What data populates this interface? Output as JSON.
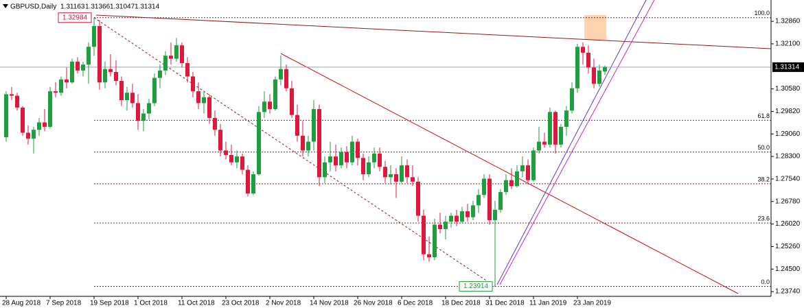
{
  "chart_data": {
    "type": "candlestick",
    "symbol": "GBPUSD,Daily",
    "categories": [
      "28 Aug 2018",
      null,
      null,
      null,
      null,
      null,
      null,
      null,
      "7 Sep 2018",
      null,
      null,
      null,
      null,
      null,
      null,
      null,
      "19 Sep 2018",
      null,
      null,
      null,
      null,
      null,
      null,
      null,
      "1 Oct 2018",
      null,
      null,
      null,
      null,
      null,
      null,
      null,
      "11 Oct 2018",
      null,
      null,
      null,
      null,
      null,
      null,
      null,
      "23 Oct 2018",
      null,
      null,
      null,
      null,
      null,
      null,
      null,
      "2 Nov 2018",
      null,
      null,
      null,
      null,
      null,
      null,
      null,
      "14 Nov 2018",
      null,
      null,
      null,
      null,
      null,
      null,
      null,
      "26 Nov 2018",
      null,
      null,
      null,
      null,
      null,
      null,
      null,
      "6 Dec 2018",
      null,
      null,
      null,
      null,
      null,
      null,
      null,
      "18 Dec 2018",
      null,
      null,
      null,
      null,
      null,
      null,
      null,
      "31 Dec 2018",
      null,
      null,
      null,
      null,
      null,
      null,
      null,
      "11 Jan 2019",
      null,
      null,
      null,
      null,
      null,
      null,
      null,
      "23 Jan 2019",
      null,
      null,
      null,
      null,
      null
    ],
    "open": [
      1.2895,
      1.304,
      1.3035,
      1.2995,
      1.291,
      1.289,
      1.292,
      1.2945,
      1.293,
      1.305,
      1.3045,
      1.309,
      1.308,
      1.315,
      1.312,
      1.314,
      1.32,
      1.327,
      1.308,
      1.3125,
      1.3115,
      1.3085,
      1.302,
      1.3045,
      1.301,
      1.295,
      1.2975,
      1.301,
      1.3095,
      1.312,
      1.317,
      1.316,
      1.3205,
      1.3145,
      1.31,
      1.305,
      1.301,
      1.303,
      1.296,
      1.292,
      1.285,
      1.2835,
      1.281,
      1.283,
      1.2785,
      1.2705,
      1.277,
      1.298,
      1.3015,
      1.299,
      1.309,
      1.3125,
      1.306,
      1.297,
      1.29,
      1.285,
      1.288,
      1.299,
      1.276,
      1.281,
      1.283,
      1.28,
      1.2845,
      1.281,
      1.288,
      1.2825,
      1.277,
      1.281,
      1.284,
      1.2795,
      1.276,
      1.277,
      1.2745,
      1.28,
      1.276,
      1.2745,
      1.263,
      1.25,
      1.249,
      1.26,
      1.2585,
      1.261,
      1.263,
      1.261,
      1.2645,
      1.2625,
      1.2665,
      1.27,
      1.2755,
      1.2615,
      1.265,
      1.271,
      1.275,
      1.273,
      1.278,
      1.28,
      1.275,
      1.285,
      1.288,
      1.287,
      1.298,
      1.287,
      1.293,
      1.2985,
      1.306,
      1.32,
      1.318,
      1.313,
      1.3075,
      1.31163
    ],
    "high": [
      1.305,
      1.3065,
      1.3045,
      1.3,
      1.2935,
      1.293,
      1.296,
      1.299,
      1.3065,
      1.308,
      1.31,
      1.313,
      1.316,
      1.3165,
      1.315,
      1.3215,
      1.32984,
      1.329,
      1.315,
      1.3175,
      1.3155,
      1.31,
      1.3065,
      1.3075,
      1.304,
      1.299,
      1.3025,
      1.311,
      1.314,
      1.3185,
      1.3215,
      1.323,
      1.3215,
      1.3165,
      1.3115,
      1.308,
      1.305,
      1.304,
      1.2985,
      1.294,
      1.288,
      1.287,
      1.285,
      1.284,
      1.28,
      1.278,
      1.3,
      1.305,
      1.304,
      1.31,
      1.3171,
      1.314,
      1.3085,
      1.3005,
      1.295,
      1.29,
      1.302,
      1.3005,
      1.283,
      1.288,
      1.287,
      1.286,
      1.2865,
      1.29,
      1.289,
      1.284,
      1.283,
      1.286,
      1.286,
      1.2815,
      1.28,
      1.279,
      1.283,
      1.282,
      1.28,
      1.276,
      1.265,
      1.256,
      1.262,
      1.264,
      1.263,
      1.264,
      1.265,
      1.266,
      1.267,
      1.268,
      1.272,
      1.277,
      1.277,
      1.268,
      1.272,
      1.277,
      1.279,
      1.28,
      1.283,
      1.282,
      1.286,
      1.293,
      1.291,
      1.2995,
      1.2985,
      1.294,
      1.3,
      1.308,
      1.321,
      1.3215,
      1.3205,
      1.316,
      1.314,
      1.31366
    ],
    "low": [
      1.288,
      1.302,
      1.2985,
      1.29,
      1.287,
      1.284,
      1.29,
      1.2915,
      1.2925,
      1.303,
      1.3035,
      1.306,
      1.3075,
      1.311,
      1.31,
      1.3075,
      1.317,
      1.3055,
      1.306,
      1.31,
      1.307,
      1.3,
      1.2985,
      1.2995,
      1.292,
      1.2915,
      1.2955,
      1.3,
      1.306,
      1.3105,
      1.314,
      1.315,
      1.313,
      1.308,
      1.303,
      1.299,
      1.2975,
      1.294,
      1.29,
      1.283,
      1.282,
      1.28,
      1.279,
      1.277,
      1.2695,
      1.27,
      1.2765,
      1.296,
      1.2975,
      1.2985,
      1.307,
      1.305,
      1.296,
      1.288,
      1.283,
      1.283,
      1.285,
      1.273,
      1.274,
      1.278,
      1.278,
      1.279,
      1.279,
      1.28,
      1.28,
      1.275,
      1.276,
      1.279,
      1.278,
      1.274,
      1.2735,
      1.269,
      1.274,
      1.274,
      1.273,
      1.261,
      1.248,
      1.2475,
      1.248,
      1.257,
      1.255,
      1.259,
      1.2595,
      1.2605,
      1.261,
      1.2615,
      1.264,
      1.269,
      1.26,
      1.23914,
      1.264,
      1.27,
      1.272,
      1.2725,
      1.276,
      1.2735,
      1.2745,
      1.284,
      1.286,
      1.286,
      1.284,
      1.286,
      1.29,
      1.2975,
      1.3045,
      1.314,
      1.311,
      1.306,
      1.3065,
      1.31047
    ],
    "close": [
      1.304,
      1.3035,
      1.2995,
      1.291,
      1.289,
      1.292,
      1.2945,
      1.293,
      1.305,
      1.3045,
      1.309,
      1.308,
      1.315,
      1.312,
      1.314,
      1.32,
      1.327,
      1.308,
      1.3125,
      1.3115,
      1.3085,
      1.302,
      1.3045,
      1.301,
      1.295,
      1.2975,
      1.301,
      1.3095,
      1.312,
      1.317,
      1.316,
      1.3205,
      1.3145,
      1.31,
      1.305,
      1.301,
      1.303,
      1.296,
      1.292,
      1.285,
      1.2835,
      1.281,
      1.283,
      1.2785,
      1.2705,
      1.277,
      1.298,
      1.3015,
      1.299,
      1.309,
      1.3125,
      1.306,
      1.297,
      1.29,
      1.285,
      1.288,
      1.299,
      1.276,
      1.281,
      1.283,
      1.28,
      1.2845,
      1.281,
      1.288,
      1.2825,
      1.277,
      1.281,
      1.284,
      1.2795,
      1.276,
      1.277,
      1.2745,
      1.28,
      1.276,
      1.2745,
      1.263,
      1.25,
      1.249,
      1.26,
      1.2585,
      1.261,
      1.263,
      1.261,
      1.2645,
      1.2625,
      1.2665,
      1.27,
      1.2755,
      1.2615,
      1.265,
      1.271,
      1.275,
      1.273,
      1.278,
      1.28,
      1.275,
      1.285,
      1.288,
      1.287,
      1.298,
      1.287,
      1.293,
      1.2985,
      1.306,
      1.32,
      1.318,
      1.313,
      1.3075,
      1.312,
      1.31314
    ],
    "up_color": "#1e9e3c",
    "down_color": "#e0173c",
    "ylim": [
      1.2358,
      1.3358
    ],
    "yticks": [
      {
        "value": 1.3286,
        "label": "1.32860"
      },
      {
        "value": 1.321,
        "label": "1.32100"
      },
      {
        "value": 1.3058,
        "label": "1.30580"
      },
      {
        "value": 1.2982,
        "label": "1.29820"
      },
      {
        "value": 1.2906,
        "label": "1.29060"
      },
      {
        "value": 1.283,
        "label": "1.28300"
      },
      {
        "value": 1.2754,
        "label": "1.27540"
      },
      {
        "value": 1.2678,
        "label": "1.26780"
      },
      {
        "value": 1.2602,
        "label": "1.26020"
      },
      {
        "value": 1.2526,
        "label": "1.25260"
      },
      {
        "value": 1.245,
        "label": "1.24500"
      },
      {
        "value": 1.2374,
        "label": "1.23740"
      }
    ],
    "fib_levels": [
      {
        "value": 100,
        "label": "100.0"
      },
      61.8,
      {
        "value": 50,
        "label": "50.0"
      },
      38.2,
      23.6,
      {
        "value": 0,
        "label": "0.0"
      }
    ]
  }
}
